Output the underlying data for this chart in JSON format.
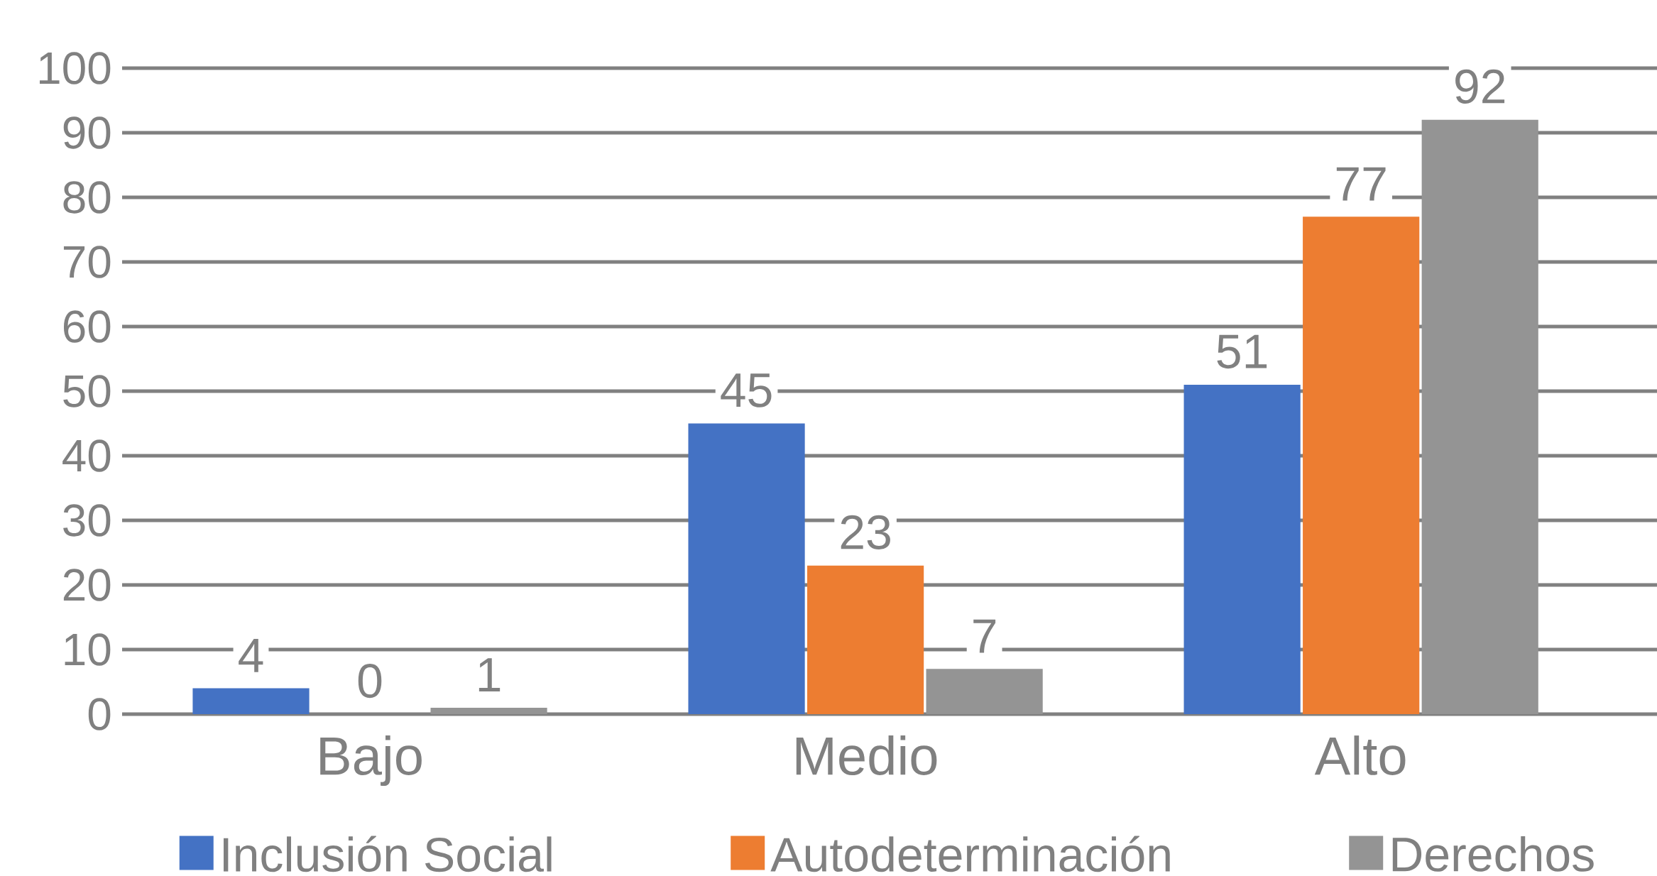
{
  "chart_data": {
    "type": "bar",
    "categories": [
      "Bajo",
      "Medio",
      "Alto"
    ],
    "series": [
      {
        "name": "Inclusión Social",
        "color": "#4472c4",
        "values": [
          4,
          45,
          51
        ]
      },
      {
        "name": "Autodeterminación",
        "color": "#ed7d31",
        "values": [
          0,
          23,
          77
        ]
      },
      {
        "name": "Derechos",
        "color": "#949494",
        "values": [
          1,
          7,
          92
        ]
      }
    ],
    "ylim": [
      0,
      100
    ],
    "yticks": [
      0,
      10,
      20,
      30,
      40,
      50,
      60,
      70,
      80,
      90,
      100
    ],
    "grid": "y",
    "legend": "bottom",
    "data_labels": true
  }
}
